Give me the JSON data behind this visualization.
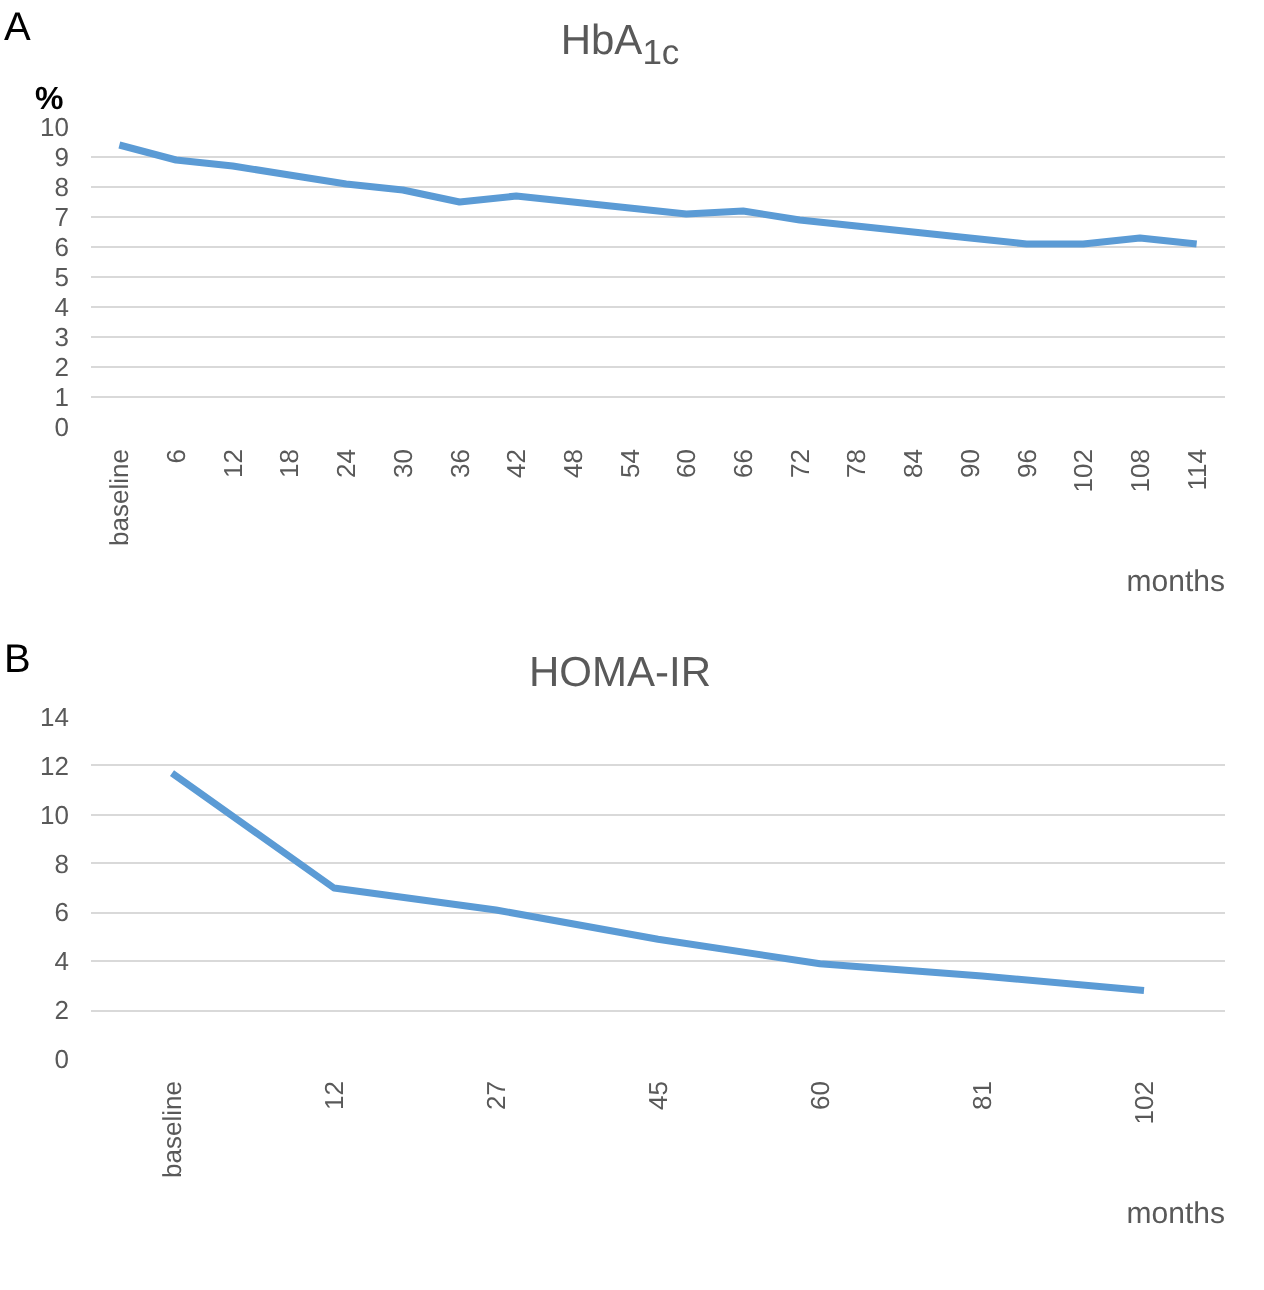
{
  "chart_data": [
    {
      "type": "line",
      "title": "HbA$_{1c}$",
      "ylabel": "%",
      "xlabel": "months",
      "annotations": [
        "A"
      ],
      "categories": [
        "baseline",
        "6",
        "12",
        "18",
        "24",
        "30",
        "36",
        "42",
        "48",
        "54",
        "60",
        "66",
        "72",
        "78",
        "84",
        "90",
        "96",
        "102",
        "108",
        "114"
      ],
      "series": [
        {
          "color": "#5b9bd5",
          "values": [
            9.4,
            8.9,
            8.7,
            8.4,
            8.1,
            7.9,
            7.5,
            7.7,
            7.5,
            7.3,
            7.1,
            7.2,
            6.9,
            6.7,
            6.5,
            6.3,
            6.1,
            6.1,
            6.3,
            6.1
          ]
        }
      ],
      "ylim": [
        0,
        10
      ],
      "yticks": [
        0,
        1,
        2,
        3,
        4,
        5,
        6,
        7,
        8,
        9,
        10
      ],
      "grid": "y",
      "marker": "none",
      "line_style": "solid"
    },
    {
      "type": "line",
      "title": "HOMA-IR",
      "xlabel": "months",
      "annotations": [
        "B"
      ],
      "categories": [
        "baseline",
        "12",
        "27",
        "45",
        "60",
        "81",
        "102"
      ],
      "series": [
        {
          "color": "#5b9bd5",
          "values": [
            11.7,
            7.0,
            6.1,
            4.9,
            3.9,
            3.4,
            2.8
          ]
        }
      ],
      "ylim": [
        0,
        14
      ],
      "yticks": [
        0,
        2,
        4,
        6,
        8,
        10,
        12,
        14
      ],
      "grid": "y",
      "marker": "none",
      "line_style": "solid"
    }
  ]
}
